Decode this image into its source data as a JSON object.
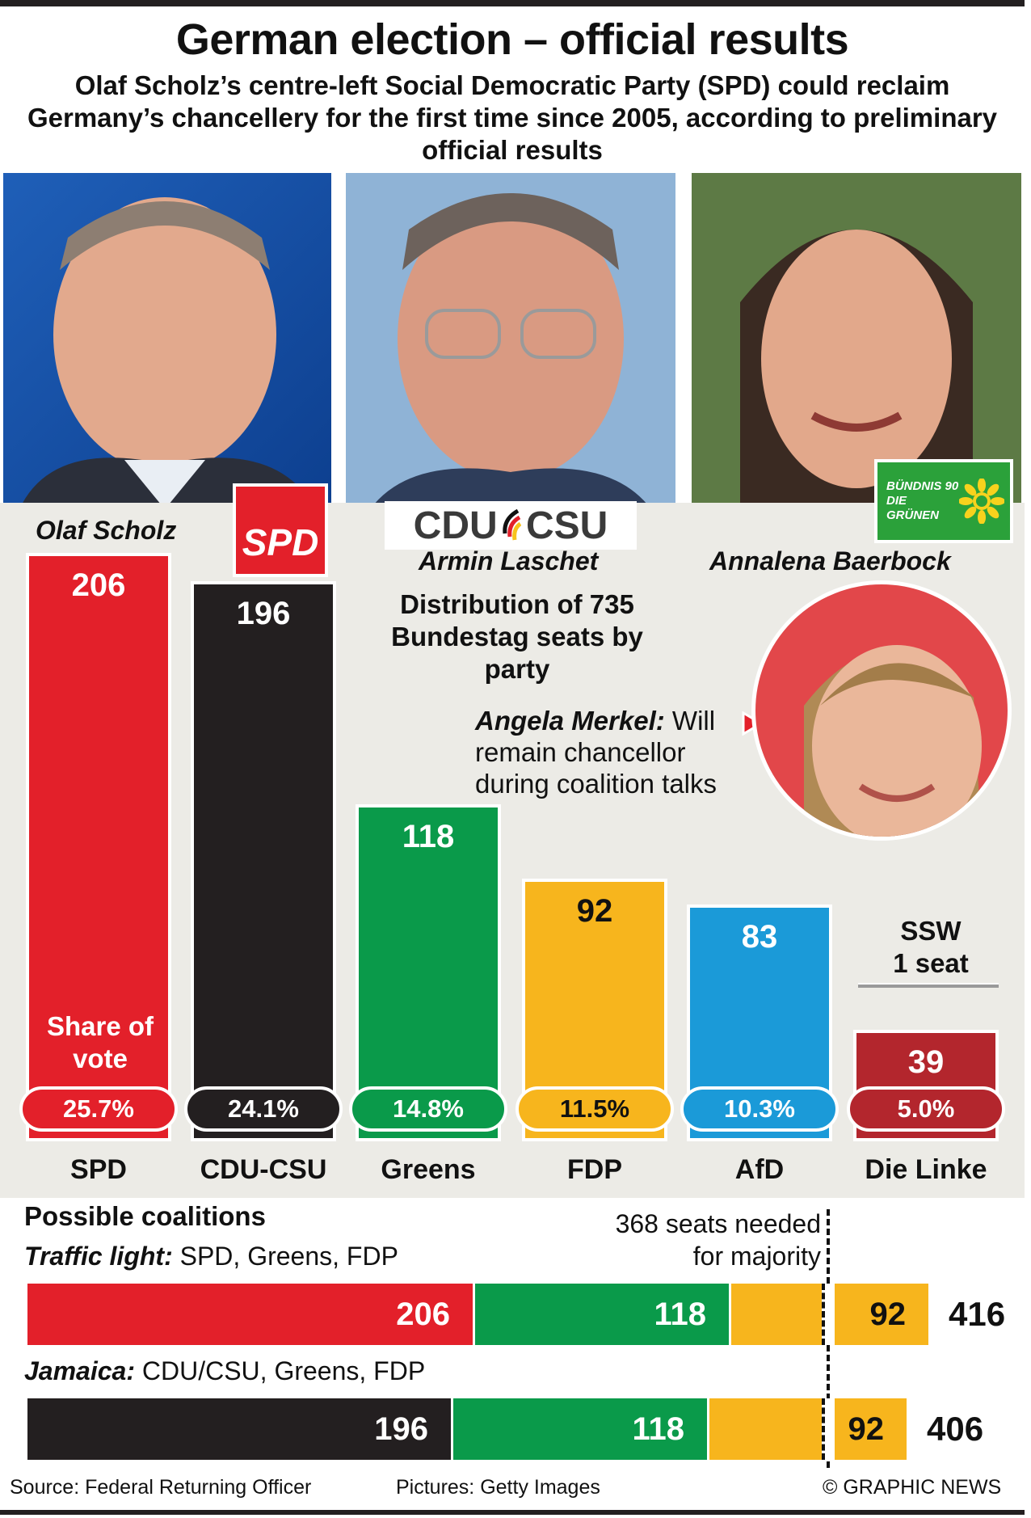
{
  "header": {
    "title": "German election – official results",
    "subtitle": "Olaf Scholz’s centre-left Social Democratic Party (SPD) could reclaim Germany’s chancellery for the first time since 2005, according to preliminary official results"
  },
  "candidates": [
    {
      "name": "Olaf Scholz",
      "party_logo": "SPD"
    },
    {
      "name": "Armin Laschet",
      "party_logo": "CDU CSU"
    },
    {
      "name": "Annalena Baerbock",
      "party_logo": "BÜNDNIS 90 DIE GRÜNEN"
    }
  ],
  "merkel_note": {
    "name": "Angela Merkel:",
    "text": "Will remain chancellor during coalition talks"
  },
  "chart_data": {
    "type": "bar",
    "title": "Distribution of 735 Bundestag seats by party",
    "categories": [
      "SPD",
      "CDU-CSU",
      "Greens",
      "FDP",
      "AfD",
      "Die Linke"
    ],
    "values": [
      206,
      196,
      118,
      92,
      83,
      39
    ],
    "vote_share_label": "Share of vote",
    "vote_share": [
      "25.7%",
      "24.1%",
      "14.8%",
      "11.5%",
      "10.3%",
      "5.0%"
    ],
    "colors": [
      "#e3202a",
      "#231f20",
      "#0a9a4a",
      "#f7b51d",
      "#1b9ad8",
      "#b3262d"
    ],
    "extra": {
      "label": "SSW",
      "value": "1 seat"
    },
    "ylim": [
      0,
      206
    ]
  },
  "coalitions": {
    "heading": "Possible coalitions",
    "majority_label": "368 seats needed for majority",
    "majority": 368,
    "scale_max": 416,
    "items": [
      {
        "name": "Traffic light:",
        "parties": "SPD, Greens, FDP",
        "segments": [
          {
            "value": 206,
            "color": "#e3202a"
          },
          {
            "value": 118,
            "color": "#0a9a4a"
          },
          {
            "value": 92,
            "color": "#f7b51d"
          }
        ],
        "total": 416
      },
      {
        "name": "Jamaica:",
        "parties": "CDU/CSU, Greens, FDP",
        "segments": [
          {
            "value": 196,
            "color": "#231f20"
          },
          {
            "value": 118,
            "color": "#0a9a4a"
          },
          {
            "value": 92,
            "color": "#f7b51d"
          }
        ],
        "total": 406
      }
    ]
  },
  "footer": {
    "source": "Source: Federal Returning Officer",
    "pictures": "Pictures: Getty Images",
    "copyright": "© GRAPHIC NEWS"
  }
}
